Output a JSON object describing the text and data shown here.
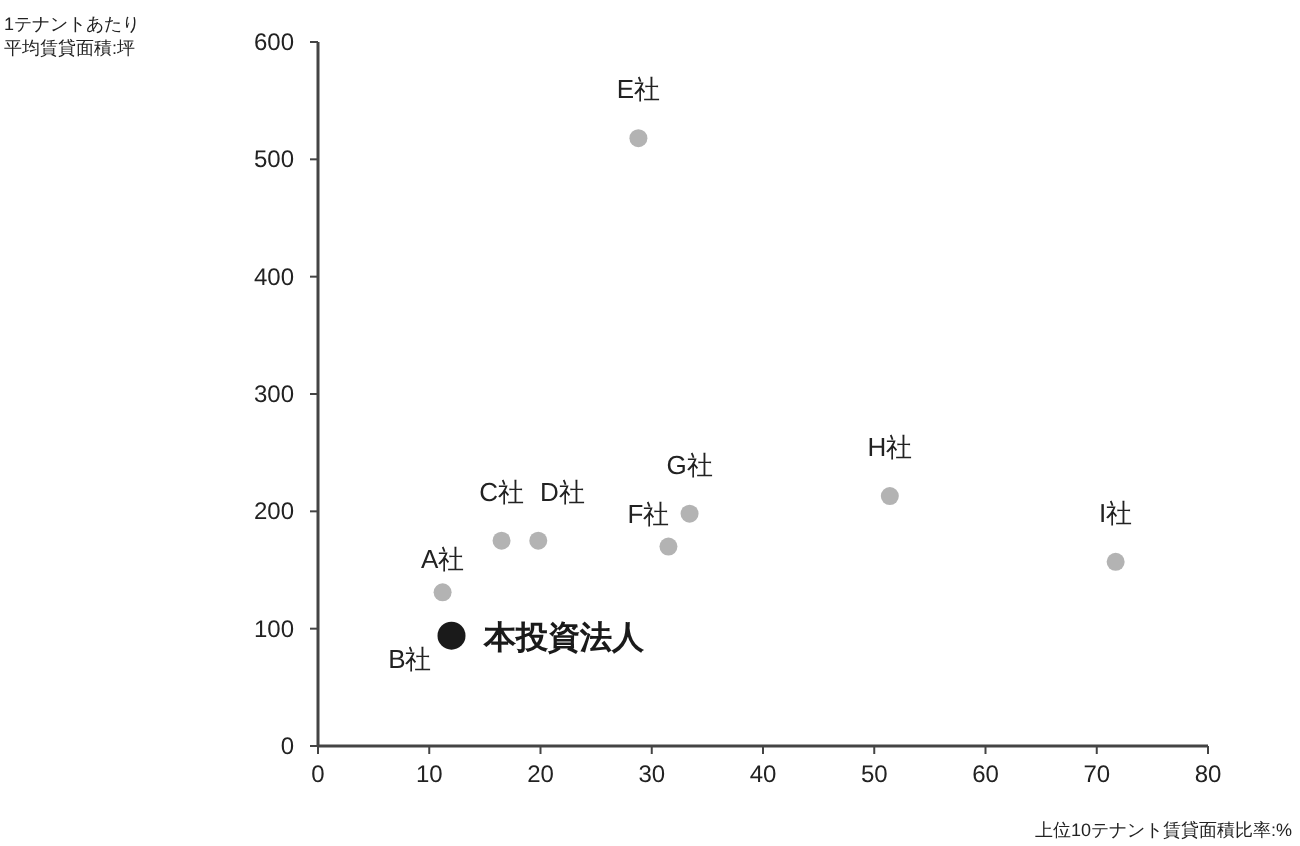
{
  "chart_data": {
    "type": "scatter",
    "xlabel": "上位10テナント賃貸面積比率:%",
    "xlim": [
      0,
      80
    ],
    "xticks": [
      0,
      10,
      20,
      30,
      40,
      50,
      60,
      70,
      80
    ],
    "ylim": [
      0,
      600
    ],
    "yticks": [
      0,
      100,
      200,
      300,
      400,
      500,
      600
    ],
    "grid": false,
    "marker": "circle",
    "series": [
      {
        "color": "#b3b3b3",
        "x": [
          11.2,
          16.5,
          19.8,
          28.8,
          31.5,
          33.4,
          51.4,
          71.7
        ],
        "values": [
          131,
          175,
          175,
          518,
          170,
          198,
          213,
          157
        ],
        "value_labels": [
          "A社",
          "C社",
          "D社",
          "E社",
          "F社",
          "G社",
          "H社",
          "I社"
        ]
      },
      {
        "name": "本投資法人",
        "color": "#1a1a1a",
        "x": [
          12.0
        ],
        "values": [
          94
        ]
      }
    ],
    "annotations": [
      "1テナントあたり平均賃貸面積:坪",
      {
        "text": "B社",
        "x": 12.0,
        "y": 94
      }
    ]
  }
}
